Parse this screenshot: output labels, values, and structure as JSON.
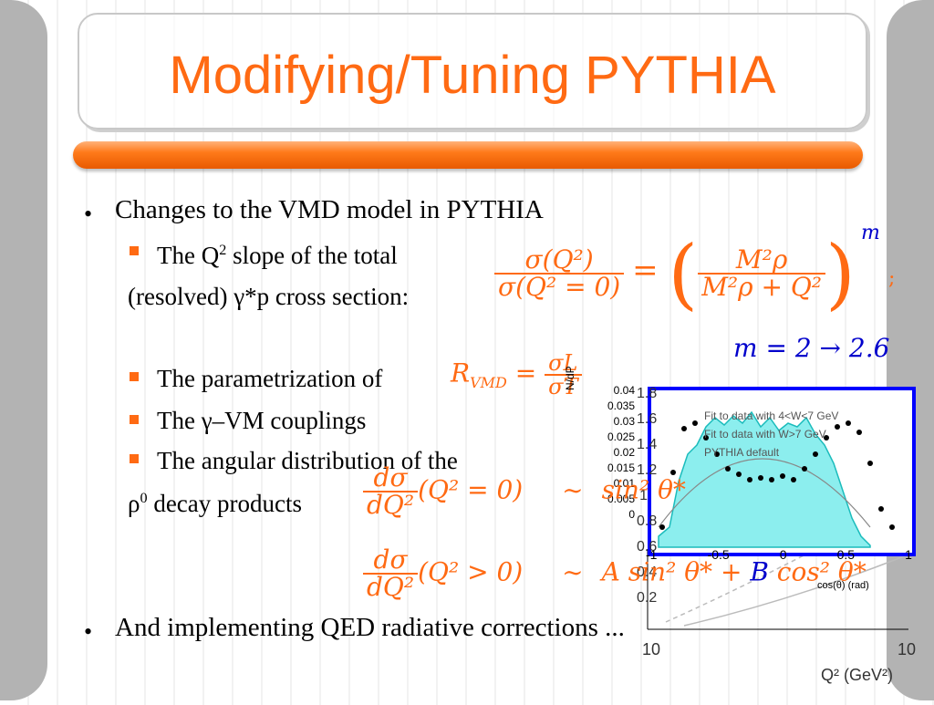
{
  "slide": {
    "title": "Modifying/Tuning PYTHIA",
    "bullets": [
      {
        "text": "Changes to the VMD model in PYTHIA"
      },
      {
        "text": "And implementing QED radiative corrections ..."
      }
    ],
    "sub_items": [
      {
        "text_pre": "The Q",
        "sup": "2",
        "text_post": " slope of the total"
      },
      {
        "text": "(resolved) γ*p cross section:"
      },
      {
        "text": "The parametrization of"
      },
      {
        "text": "The γ–VM couplings"
      },
      {
        "text": "The angular distribution of the"
      },
      {
        "text_pre": "ρ",
        "sup": "0",
        "text_post": " decay products"
      }
    ]
  },
  "equations": {
    "cross_section_lhs_num": "σ(Q²)",
    "cross_section_lhs_den": "σ(Q² = 0)",
    "cross_section_rhs_num": "M²ρ",
    "cross_section_rhs_den": "M²ρ + Q²",
    "exponent": "m",
    "separator": ";",
    "m_change": "m = 2 → 2.6",
    "rvmd_lhs": "R",
    "rvmd_sub": "VMD",
    "rvmd_num": "σL",
    "rvmd_den": "σT",
    "ang1_num": "dσ",
    "ang1_den": "dQ²",
    "ang1_arg": "(Q² = 0)",
    "ang1_rhs": "sin² θ*",
    "ang2_num": "dσ",
    "ang2_den": "dQ²",
    "ang2_arg": "(Q² > 0)",
    "ang2_rhs_a": "A sin² θ* + ",
    "ang2_rhs_b": "B",
    "ang2_rhs_c": " cos² θ*",
    "tilde": "∼"
  },
  "plot": {
    "y_axis_title": "N/dP",
    "x_axis_title": "cos(θ) (rad)",
    "outer_x_title": "Q² (GeV²)",
    "y_ticks": [
      "0.04",
      "0.035",
      "0.03",
      "0.025",
      "0.02",
      "0.015",
      "0.01",
      "0.005",
      "0"
    ],
    "x_ticks": [
      "-1",
      "-0.5",
      "0",
      "0.5",
      "1"
    ],
    "outer_y_ticks": [
      "1.8",
      "1.6",
      "1.4",
      "1.2",
      "1",
      "0.8",
      "0.6",
      "0.4",
      "0.2"
    ],
    "outer_x_ticks": [
      "10",
      "10"
    ],
    "legend": [
      "Fit to data with 4<W<7 GeV",
      "Fit to data with W>7 GeV",
      "PYTHIA default"
    ]
  },
  "colors": {
    "title": "#ff6a13",
    "bar": "#ff7a1a",
    "math": "#0000cc",
    "math_alt": "#ff6a13",
    "hist": "#2ee0e0",
    "frame": "#0000ff"
  }
}
